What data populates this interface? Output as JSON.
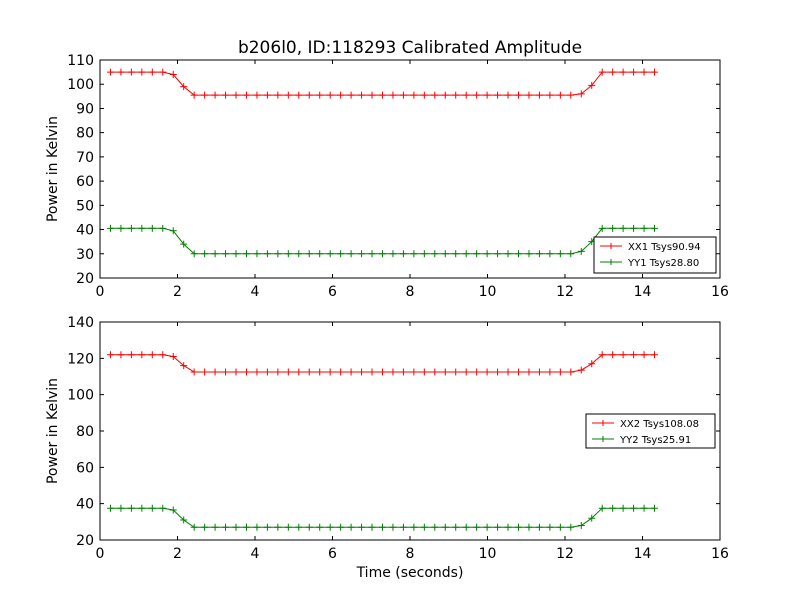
{
  "title": "b206l0, ID:118293 Calibrated Amplitude",
  "chart_data": [
    {
      "type": "line",
      "ylabel": "Power in Kelvin",
      "xlabel": "",
      "xlim": [
        0,
        16
      ],
      "ylim": [
        20,
        110
      ],
      "x_ticks": [
        "0",
        "2",
        "4",
        "6",
        "8",
        "10",
        "12",
        "14",
        "16"
      ],
      "y_ticks": [
        "20",
        "30",
        "40",
        "50",
        "60",
        "70",
        "80",
        "90",
        "100",
        "110"
      ],
      "legend_position": "lower-right",
      "x": [
        0.27,
        0.54,
        0.81,
        1.08,
        1.35,
        1.62,
        1.89,
        2.16,
        2.43,
        2.7,
        2.97,
        3.24,
        3.51,
        3.78,
        4.05,
        4.32,
        4.59,
        4.86,
        5.13,
        5.4,
        5.67,
        5.94,
        6.21,
        6.48,
        6.75,
        7.02,
        7.29,
        7.56,
        7.83,
        8.1,
        8.37,
        8.64,
        8.91,
        9.18,
        9.45,
        9.72,
        9.99,
        10.26,
        10.53,
        10.8,
        11.07,
        11.34,
        11.61,
        11.88,
        12.15,
        12.42,
        12.69,
        12.96,
        13.23,
        13.5,
        13.77,
        14.04,
        14.31
      ],
      "series": [
        {
          "name": "XX1 Tsys90.94",
          "color": "#ff0000",
          "values": [
            105,
            105,
            105,
            105,
            105,
            105,
            104,
            99,
            95.5,
            95.5,
            95.5,
            95.5,
            95.5,
            95.5,
            95.5,
            95.5,
            95.5,
            95.5,
            95.5,
            95.5,
            95.5,
            95.5,
            95.5,
            95.5,
            95.5,
            95.5,
            95.5,
            95.5,
            95.5,
            95.5,
            95.5,
            95.5,
            95.5,
            95.5,
            95.5,
            95.5,
            95.5,
            95.5,
            95.5,
            95.5,
            95.5,
            95.5,
            95.5,
            95.5,
            95.5,
            96,
            99.5,
            105,
            105,
            105,
            105,
            105,
            105
          ]
        },
        {
          "name": "YY1 Tsys28.80",
          "color": "#008000",
          "values": [
            40.5,
            40.5,
            40.5,
            40.5,
            40.5,
            40.5,
            39.5,
            34,
            30,
            30,
            30,
            30,
            30,
            30,
            30,
            30,
            30,
            30,
            30,
            30,
            30,
            30,
            30,
            30,
            30,
            30,
            30,
            30,
            30,
            30,
            30,
            30,
            30,
            30,
            30,
            30,
            30,
            30,
            30,
            30,
            30,
            30,
            30,
            30,
            30,
            31,
            35,
            40.5,
            40.5,
            40.5,
            40.5,
            40.5,
            40.5
          ]
        }
      ]
    },
    {
      "type": "line",
      "ylabel": "Power in Kelvin",
      "xlabel": "Time (seconds)",
      "xlim": [
        0,
        16
      ],
      "ylim": [
        20,
        140
      ],
      "x_ticks": [
        "0",
        "2",
        "4",
        "6",
        "8",
        "10",
        "12",
        "14",
        "16"
      ],
      "y_ticks": [
        "20",
        "40",
        "60",
        "80",
        "100",
        "120",
        "140"
      ],
      "legend_position": "center-right",
      "x": [
        0.27,
        0.54,
        0.81,
        1.08,
        1.35,
        1.62,
        1.89,
        2.16,
        2.43,
        2.7,
        2.97,
        3.24,
        3.51,
        3.78,
        4.05,
        4.32,
        4.59,
        4.86,
        5.13,
        5.4,
        5.67,
        5.94,
        6.21,
        6.48,
        6.75,
        7.02,
        7.29,
        7.56,
        7.83,
        8.1,
        8.37,
        8.64,
        8.91,
        9.18,
        9.45,
        9.72,
        9.99,
        10.26,
        10.53,
        10.8,
        11.07,
        11.34,
        11.61,
        11.88,
        12.15,
        12.42,
        12.69,
        12.96,
        13.23,
        13.5,
        13.77,
        14.04,
        14.31
      ],
      "series": [
        {
          "name": "XX2 Tsys108.08",
          "color": "#ff0000",
          "values": [
            122,
            122,
            122,
            122,
            122,
            122,
            121,
            116,
            112.5,
            112.5,
            112.5,
            112.5,
            112.5,
            112.5,
            112.5,
            112.5,
            112.5,
            112.5,
            112.5,
            112.5,
            112.5,
            112.5,
            112.5,
            112.5,
            112.5,
            112.5,
            112.5,
            112.5,
            112.5,
            112.5,
            112.5,
            112.5,
            112.5,
            112.5,
            112.5,
            112.5,
            112.5,
            112.5,
            112.5,
            112.5,
            112.5,
            112.5,
            112.5,
            112.5,
            112.5,
            113.5,
            117,
            122,
            122,
            122,
            122,
            122,
            122
          ]
        },
        {
          "name": "YY2 Tsys25.91",
          "color": "#008000",
          "values": [
            37.5,
            37.5,
            37.5,
            37.5,
            37.5,
            37.5,
            36.5,
            31,
            27,
            27,
            27,
            27,
            27,
            27,
            27,
            27,
            27,
            27,
            27,
            27,
            27,
            27,
            27,
            27,
            27,
            27,
            27,
            27,
            27,
            27,
            27,
            27,
            27,
            27,
            27,
            27,
            27,
            27,
            27,
            27,
            27,
            27,
            27,
            27,
            27,
            28,
            32,
            37.5,
            37.5,
            37.5,
            37.5,
            37.5,
            37.5
          ]
        }
      ]
    }
  ]
}
